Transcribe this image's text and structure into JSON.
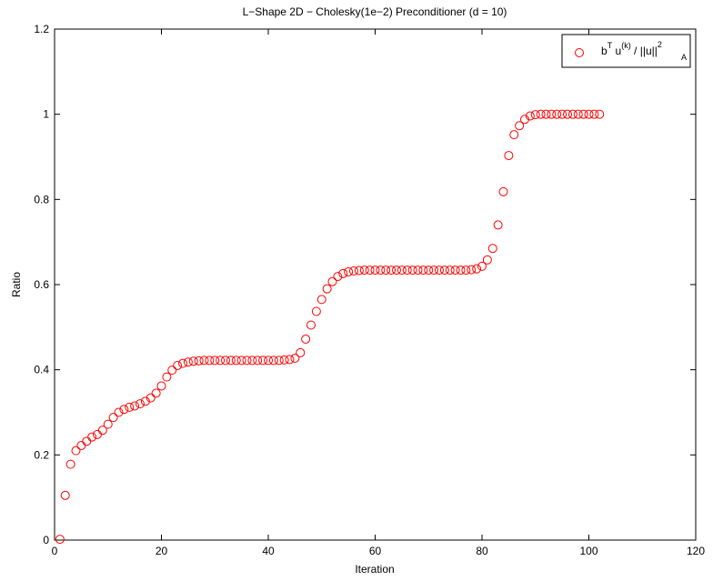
{
  "chart_data": {
    "type": "scatter",
    "title": "L−Shape  2D − Cholesky(1e−2) Preconditioner (d = 10)",
    "xlabel": "Iteration",
    "ylabel": "Ratio",
    "xlim": [
      0,
      120
    ],
    "ylim": [
      0,
      1.2
    ],
    "xticks": [
      0,
      20,
      40,
      60,
      80,
      100,
      120
    ],
    "yticks": [
      0,
      0.2,
      0.4,
      0.6,
      0.8,
      1,
      1.2
    ],
    "xtick_labels": [
      "0",
      "20",
      "40",
      "60",
      "80",
      "100",
      "120"
    ],
    "ytick_labels": [
      "0",
      "0.2",
      "0.4",
      "0.6",
      "0.8",
      "1",
      "1.2"
    ],
    "grid": false,
    "legend_position": "top-right",
    "legend": {
      "base": "b",
      "sup1": "T",
      "mid": " u",
      "sup2": "(k)",
      "rest": " / ||u||",
      "sup3": "2",
      "sub3": "A"
    },
    "marker": "open-circle",
    "color": "#ff0000",
    "series": [
      {
        "x": [
          1,
          2,
          3,
          4,
          5,
          6,
          7,
          8,
          9,
          10,
          11,
          12,
          13,
          14,
          15,
          16,
          17,
          18,
          19,
          20,
          21,
          22,
          23,
          24,
          25,
          26,
          27,
          28,
          29,
          30,
          31,
          32,
          33,
          34,
          35,
          36,
          37,
          38,
          39,
          40,
          41,
          42,
          43,
          44,
          45,
          46,
          47,
          48,
          49,
          50,
          51,
          52,
          53,
          54,
          55,
          56,
          57,
          58,
          59,
          60,
          61,
          62,
          63,
          64,
          65,
          66,
          67,
          68,
          69,
          70,
          71,
          72,
          73,
          74,
          75,
          76,
          77,
          78,
          79,
          80,
          81,
          82,
          83,
          84,
          85,
          86,
          87,
          88,
          89,
          90,
          91,
          92,
          93,
          94,
          95,
          96,
          97,
          98,
          99,
          100,
          101,
          102
        ],
        "y": [
          0.002,
          0.105,
          0.178,
          0.21,
          0.222,
          0.232,
          0.242,
          0.248,
          0.258,
          0.272,
          0.288,
          0.3,
          0.307,
          0.312,
          0.315,
          0.32,
          0.326,
          0.334,
          0.345,
          0.362,
          0.383,
          0.399,
          0.41,
          0.415,
          0.418,
          0.42,
          0.421,
          0.422,
          0.422,
          0.422,
          0.422,
          0.422,
          0.422,
          0.422,
          0.422,
          0.422,
          0.422,
          0.422,
          0.422,
          0.422,
          0.422,
          0.422,
          0.423,
          0.424,
          0.427,
          0.44,
          0.472,
          0.505,
          0.537,
          0.565,
          0.59,
          0.607,
          0.619,
          0.626,
          0.63,
          0.632,
          0.633,
          0.634,
          0.634,
          0.634,
          0.634,
          0.634,
          0.634,
          0.634,
          0.634,
          0.634,
          0.634,
          0.634,
          0.634,
          0.634,
          0.634,
          0.634,
          0.634,
          0.634,
          0.634,
          0.634,
          0.634,
          0.635,
          0.637,
          0.643,
          0.658,
          0.685,
          0.74,
          0.818,
          0.903,
          0.952,
          0.973,
          0.988,
          0.996,
          0.999,
          1.0,
          1.0,
          1.0,
          1.0,
          1.0,
          1.0,
          1.0,
          1.0,
          1.0,
          1.0,
          1.0,
          1.0
        ]
      }
    ]
  }
}
